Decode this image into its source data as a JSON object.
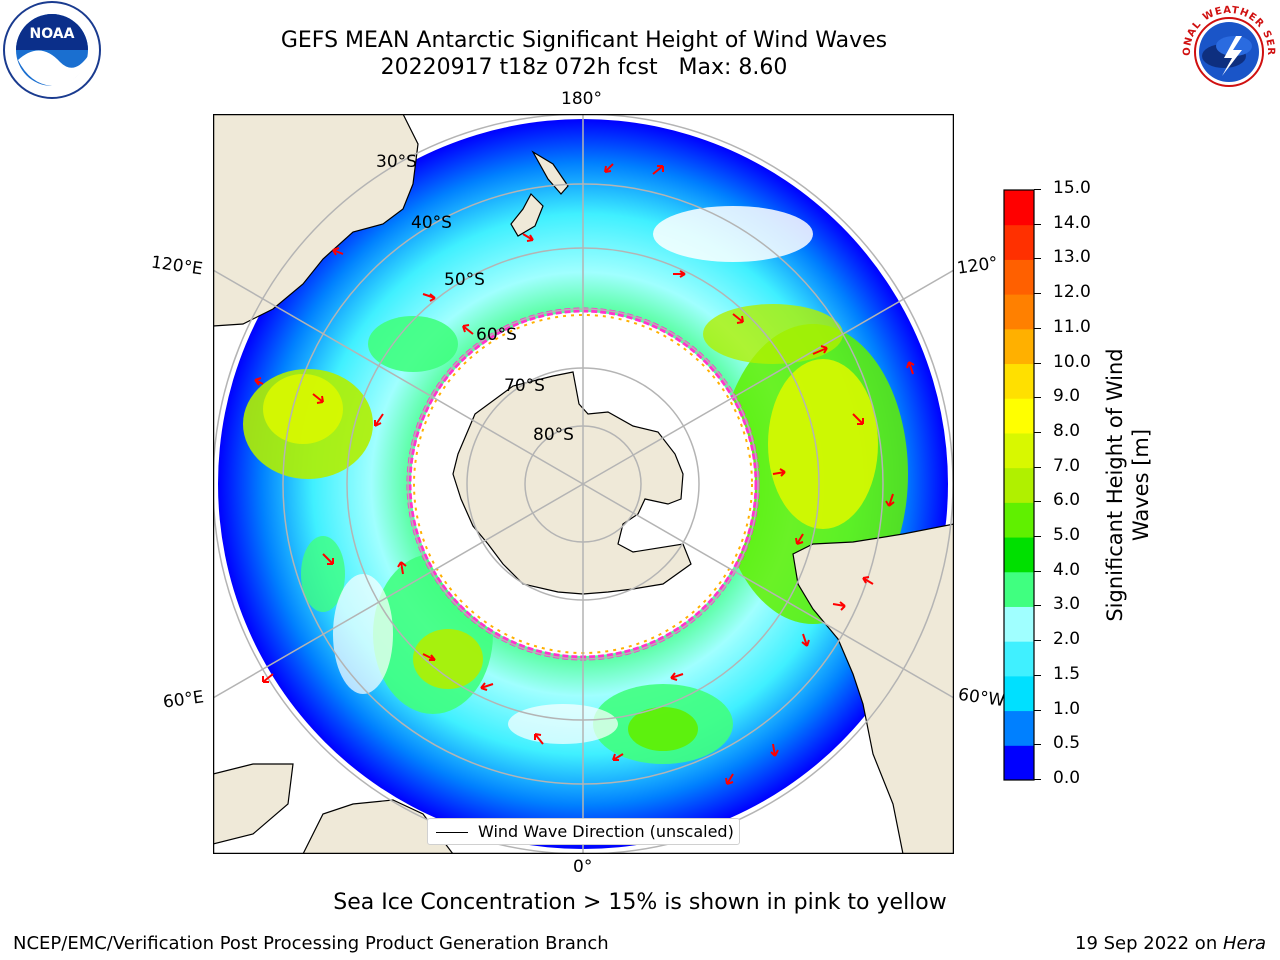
{
  "title": {
    "line1": "GEFS MEAN Antarctic Significant Height of Wind Waves",
    "line2": "20220917 t18z 072h fcst   Max: 8.60"
  },
  "logos": {
    "noaa_text": "NOAA",
    "nws_text": "NATIONAL WEATHER SERVICE"
  },
  "map": {
    "longitude_labels": {
      "top": "180°",
      "bottom": "0°",
      "left_upper": "120°E",
      "left_lower": "60°E",
      "right_upper": "120°",
      "right_lower": "60°W"
    },
    "latitude_labels": [
      "30°S",
      "40°S",
      "50°S",
      "60°S",
      "70°S",
      "80°S"
    ],
    "legend_label": "Wind Wave Direction (unscaled)",
    "colors": {
      "land": "#efe9d8",
      "ice_edge": "#ff33cc",
      "ice_edge_inner": "#ffb000",
      "arrows": "#ff0000",
      "grid": "#b4b4b4"
    }
  },
  "colorbar": {
    "label": "Significant Height of Wind Waves [m]",
    "ticks": [
      "15.0",
      "14.0",
      "13.0",
      "12.0",
      "11.0",
      "10.0",
      "9.0",
      "8.0",
      "7.0",
      "6.0",
      "5.0",
      "4.0",
      "3.0",
      "2.0",
      "1.5",
      "1.0",
      "0.5",
      "0.0"
    ],
    "colors_bottom_to_top": [
      "#0000ff",
      "#0080ff",
      "#00e0ff",
      "#40f0ff",
      "#a0ffff",
      "#40ff80",
      "#00e000",
      "#60f000",
      "#b0f000",
      "#d8f800",
      "#ffff00",
      "#ffe000",
      "#ffb000",
      "#ff8000",
      "#ff6000",
      "#ff3000",
      "#ff0000"
    ]
  },
  "caption": "Sea Ice Concentration > 15% is shown in pink to yellow",
  "footer": {
    "left": "NCEP/EMC/Verification Post Processing Product Generation Branch",
    "right_prefix": "19 Sep 2022 on ",
    "right_host": "Hera"
  }
}
